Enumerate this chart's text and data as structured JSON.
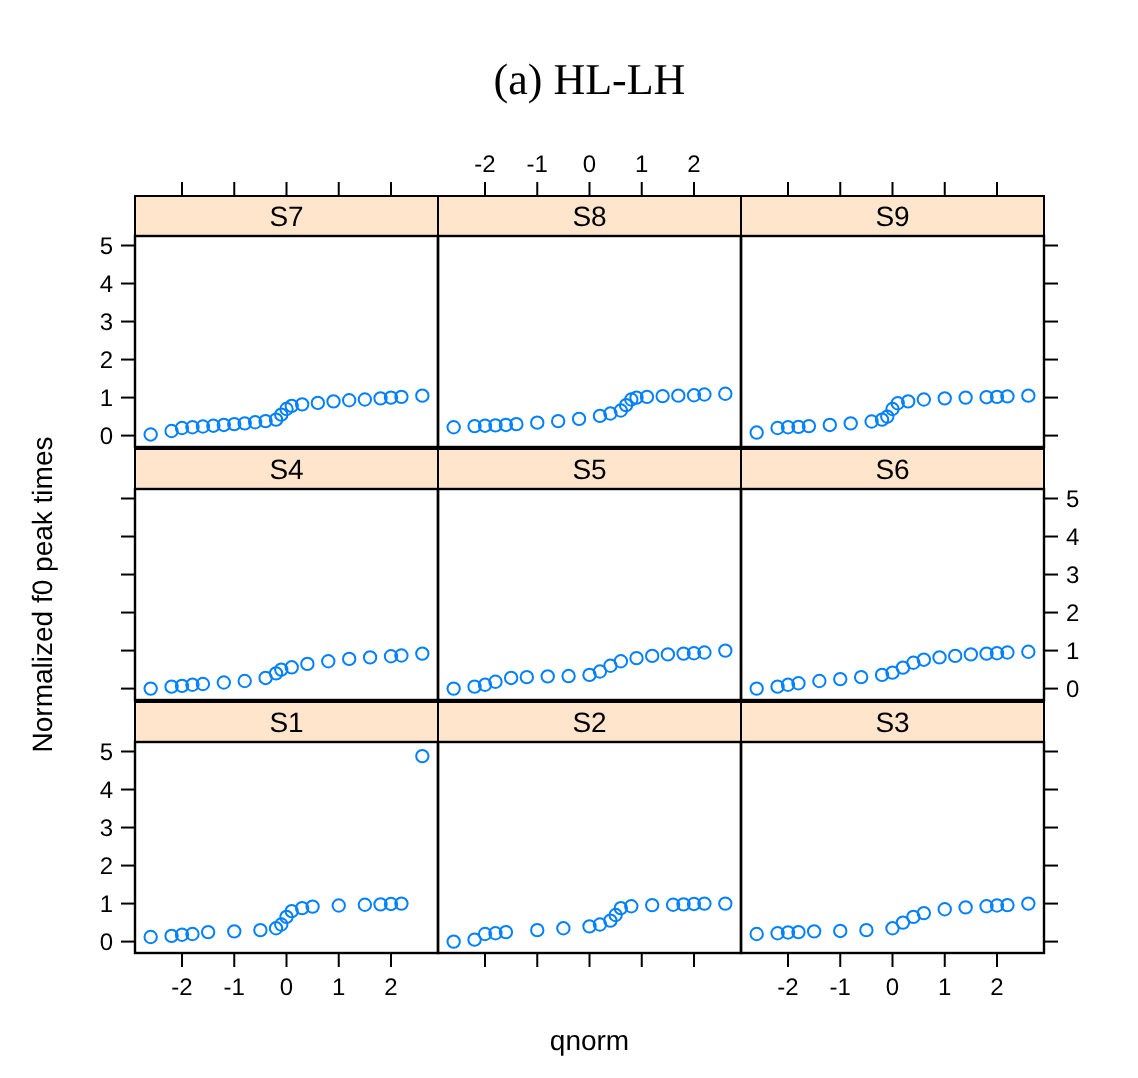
{
  "chart_data": [
    {
      "type": "scatter",
      "title": "S7",
      "xlim": [
        -2.9,
        2.9
      ],
      "xticks": [
        -2,
        -1,
        0,
        1,
        2
      ],
      "ylim": [
        -0.3,
        5.25
      ],
      "yticks": [
        0,
        1,
        2,
        3,
        4,
        5
      ],
      "tick_labels": "y",
      "marker": "circle",
      "grid": false,
      "series": [
        {
          "color": "#0080ff",
          "x": [
            -2.6,
            -2.2,
            -2.0,
            -1.8,
            -1.6,
            -1.4,
            -1.2,
            -1.0,
            -0.8,
            -0.6,
            -0.4,
            -0.2,
            -0.1,
            0,
            0.1,
            0.3,
            0.6,
            0.9,
            1.2,
            1.5,
            1.8,
            2.0,
            2.2,
            2.6
          ],
          "values": [
            0.03,
            0.12,
            0.2,
            0.22,
            0.24,
            0.26,
            0.28,
            0.3,
            0.32,
            0.35,
            0.38,
            0.42,
            0.55,
            0.7,
            0.78,
            0.82,
            0.86,
            0.9,
            0.93,
            0.95,
            0.98,
            1.0,
            1.02,
            1.05
          ]
        }
      ]
    },
    {
      "type": "scatter",
      "title": "S8",
      "annotations": [
        "(a) HL-LH"
      ],
      "xlim": [
        -2.9,
        2.9
      ],
      "xticks": [
        -2,
        -1,
        0,
        1,
        2
      ],
      "ylim": [
        -0.3,
        5.25
      ],
      "yticks": [
        0,
        1,
        2,
        3,
        4,
        5
      ],
      "tick_labels": "x",
      "marker": "circle",
      "grid": false,
      "series": [
        {
          "color": "#0080ff",
          "x": [
            -2.6,
            -2.2,
            -2.0,
            -1.8,
            -1.6,
            -1.4,
            -1.0,
            -0.6,
            -0.2,
            0.2,
            0.4,
            0.6,
            0.7,
            0.8,
            0.9,
            1.1,
            1.4,
            1.7,
            2.0,
            2.2,
            2.6
          ],
          "values": [
            0.22,
            0.25,
            0.26,
            0.27,
            0.28,
            0.3,
            0.34,
            0.38,
            0.44,
            0.52,
            0.58,
            0.66,
            0.8,
            0.95,
            1.0,
            1.02,
            1.04,
            1.05,
            1.06,
            1.08,
            1.1
          ]
        }
      ]
    },
    {
      "type": "scatter",
      "title": "S9",
      "xlim": [
        -2.9,
        2.9
      ],
      "xticks": [
        -2,
        -1,
        0,
        1,
        2
      ],
      "ylim": [
        -0.3,
        5.25
      ],
      "yticks": [
        0,
        1,
        2,
        3,
        4,
        5
      ],
      "tick_labels": false,
      "marker": "circle",
      "grid": false,
      "series": [
        {
          "color": "#0080ff",
          "x": [
            -2.6,
            -2.2,
            -2.0,
            -1.8,
            -1.6,
            -1.2,
            -0.8,
            -0.4,
            -0.2,
            -0.1,
            0,
            0.1,
            0.3,
            0.6,
            1.0,
            1.4,
            1.8,
            2.0,
            2.2,
            2.6
          ],
          "values": [
            0.08,
            0.2,
            0.22,
            0.23,
            0.25,
            0.28,
            0.32,
            0.37,
            0.42,
            0.5,
            0.7,
            0.85,
            0.9,
            0.95,
            0.98,
            1.0,
            1.01,
            1.02,
            1.03,
            1.05
          ]
        }
      ]
    },
    {
      "type": "scatter",
      "title": "S4",
      "ylabel": "Normalized f0 peak times",
      "xlim": [
        -2.9,
        2.9
      ],
      "xticks": [
        -2,
        -1,
        0,
        1,
        2
      ],
      "ylim": [
        -0.3,
        5.25
      ],
      "yticks": [
        0,
        1,
        2,
        3,
        4,
        5
      ],
      "tick_labels": false,
      "marker": "circle",
      "grid": false,
      "series": [
        {
          "color": "#0080ff",
          "x": [
            -2.6,
            -2.2,
            -2.0,
            -1.8,
            -1.6,
            -1.2,
            -0.8,
            -0.4,
            -0.2,
            -0.1,
            0.1,
            0.4,
            0.8,
            1.2,
            1.6,
            2.0,
            2.2,
            2.6
          ],
          "values": [
            0.0,
            0.05,
            0.07,
            0.1,
            0.12,
            0.16,
            0.2,
            0.28,
            0.4,
            0.5,
            0.56,
            0.65,
            0.72,
            0.78,
            0.82,
            0.85,
            0.87,
            0.92
          ]
        }
      ]
    },
    {
      "type": "scatter",
      "title": "S5",
      "xlim": [
        -2.9,
        2.9
      ],
      "xticks": [
        -2,
        -1,
        0,
        1,
        2
      ],
      "ylim": [
        -0.3,
        5.25
      ],
      "yticks": [
        0,
        1,
        2,
        3,
        4,
        5
      ],
      "tick_labels": false,
      "marker": "circle",
      "grid": false,
      "series": [
        {
          "color": "#0080ff",
          "x": [
            -2.6,
            -2.2,
            -2.0,
            -1.8,
            -1.5,
            -1.2,
            -0.8,
            -0.4,
            0,
            0.2,
            0.4,
            0.6,
            0.9,
            1.2,
            1.5,
            1.8,
            2.0,
            2.2,
            2.6
          ],
          "values": [
            0.0,
            0.05,
            0.1,
            0.18,
            0.28,
            0.3,
            0.32,
            0.33,
            0.36,
            0.45,
            0.6,
            0.72,
            0.8,
            0.86,
            0.9,
            0.92,
            0.93,
            0.95,
            1.0
          ]
        }
      ]
    },
    {
      "type": "scatter",
      "title": "S6",
      "xlim": [
        -2.9,
        2.9
      ],
      "xticks": [
        -2,
        -1,
        0,
        1,
        2
      ],
      "ylim": [
        -0.3,
        5.25
      ],
      "yticks": [
        0,
        1,
        2,
        3,
        4,
        5
      ],
      "tick_labels": "y",
      "marker": "circle",
      "grid": false,
      "series": [
        {
          "color": "#0080ff",
          "x": [
            -2.6,
            -2.2,
            -2.0,
            -1.8,
            -1.4,
            -1.0,
            -0.6,
            -0.2,
            0,
            0.2,
            0.4,
            0.6,
            0.9,
            1.2,
            1.5,
            1.8,
            2.0,
            2.2,
            2.6
          ],
          "values": [
            0.0,
            0.05,
            0.1,
            0.14,
            0.2,
            0.25,
            0.3,
            0.36,
            0.42,
            0.55,
            0.68,
            0.76,
            0.82,
            0.86,
            0.9,
            0.92,
            0.93,
            0.95,
            0.97
          ]
        }
      ]
    },
    {
      "type": "scatter",
      "title": "S1",
      "xlim": [
        -2.9,
        2.9
      ],
      "xticks": [
        -2,
        -1,
        0,
        1,
        2
      ],
      "ylim": [
        -0.3,
        5.25
      ],
      "yticks": [
        0,
        1,
        2,
        3,
        4,
        5
      ],
      "marker": "circle",
      "grid": false,
      "series": [
        {
          "color": "#0080ff",
          "x": [
            -2.6,
            -2.2,
            -2.0,
            -1.8,
            -1.5,
            -1.0,
            -0.5,
            -0.2,
            -0.1,
            0,
            0.1,
            0.3,
            0.5,
            1.0,
            1.5,
            1.8,
            2.0,
            2.2,
            2.6
          ],
          "values": [
            0.12,
            0.15,
            0.18,
            0.2,
            0.25,
            0.27,
            0.3,
            0.35,
            0.45,
            0.65,
            0.8,
            0.88,
            0.92,
            0.95,
            0.97,
            0.98,
            0.99,
            1.0,
            4.88
          ]
        }
      ]
    },
    {
      "type": "scatter",
      "title": "S2",
      "xlabel": "qnorm",
      "xlim": [
        -2.9,
        2.9
      ],
      "xticks": [
        -2,
        -1,
        0,
        1,
        2
      ],
      "ylim": [
        -0.3,
        5.25
      ],
      "yticks": [
        0,
        1,
        2,
        3,
        4,
        5
      ],
      "tick_labels": false,
      "marker": "circle",
      "grid": false,
      "series": [
        {
          "color": "#0080ff",
          "x": [
            -2.6,
            -2.2,
            -2.0,
            -1.8,
            -1.6,
            -1.0,
            -0.5,
            0,
            0.2,
            0.4,
            0.5,
            0.6,
            0.8,
            1.2,
            1.6,
            1.8,
            2.0,
            2.2,
            2.6
          ],
          "values": [
            0.0,
            0.05,
            0.2,
            0.22,
            0.25,
            0.3,
            0.35,
            0.4,
            0.45,
            0.55,
            0.7,
            0.88,
            0.93,
            0.96,
            0.97,
            0.98,
            0.99,
            1.0,
            1.0
          ]
        }
      ]
    },
    {
      "type": "scatter",
      "title": "S3",
      "xlim": [
        -2.9,
        2.9
      ],
      "xticks": [
        -2,
        -1,
        0,
        1,
        2
      ],
      "ylim": [
        -0.3,
        5.25
      ],
      "yticks": [
        0,
        1,
        2,
        3,
        4,
        5
      ],
      "tick_labels": "x",
      "marker": "circle",
      "grid": false,
      "series": [
        {
          "color": "#0080ff",
          "x": [
            -2.6,
            -2.2,
            -2.0,
            -1.8,
            -1.5,
            -1.0,
            -0.5,
            0,
            0.2,
            0.4,
            0.6,
            1.0,
            1.4,
            1.8,
            2.0,
            2.2,
            2.6
          ],
          "values": [
            0.2,
            0.22,
            0.24,
            0.25,
            0.27,
            0.28,
            0.3,
            0.35,
            0.5,
            0.65,
            0.75,
            0.85,
            0.9,
            0.93,
            0.95,
            0.96,
            1.0
          ]
        }
      ]
    }
  ]
}
